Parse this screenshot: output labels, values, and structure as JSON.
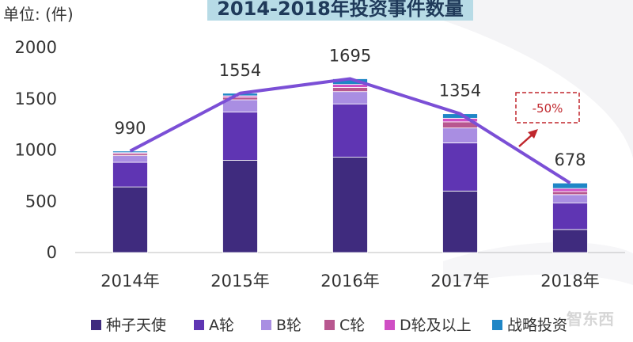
{
  "chart_data": {
    "type": "bar",
    "stacked": true,
    "title": "2014-2018年投资事件数量",
    "unit_label": "单位: (件)",
    "categories": [
      "2014年",
      "2015年",
      "2016年",
      "2017年",
      "2018年"
    ],
    "ylim": [
      0,
      2000
    ],
    "yticks": [
      0,
      500,
      1000,
      1500,
      2000
    ],
    "series": [
      {
        "name": "种子天使",
        "color": "#3f2b7e",
        "values": [
          640,
          900,
          930,
          600,
          225
        ]
      },
      {
        "name": "A轮",
        "color": "#5f35b3",
        "values": [
          240,
          470,
          520,
          470,
          260
        ]
      },
      {
        "name": "B轮",
        "color": "#a98ee2",
        "values": [
          65,
          120,
          120,
          145,
          80
        ]
      },
      {
        "name": "C轮",
        "color": "#b8578f",
        "values": [
          20,
          25,
          40,
          60,
          30
        ]
      },
      {
        "name": "D轮及以上",
        "color": "#cf4fc4",
        "values": [
          10,
          14,
          30,
          35,
          30
        ]
      },
      {
        "name": "战略投资",
        "color": "#1f86c6",
        "values": [
          15,
          25,
          55,
          44,
          53
        ]
      }
    ],
    "totals": [
      990,
      1554,
      1695,
      1354,
      678
    ],
    "trend_line_color": "#7b4fd6",
    "annotation": {
      "text": "-50%",
      "color": "#c0272d"
    },
    "grid": false,
    "legend_position": "bottom"
  },
  "watermark": "智东西"
}
